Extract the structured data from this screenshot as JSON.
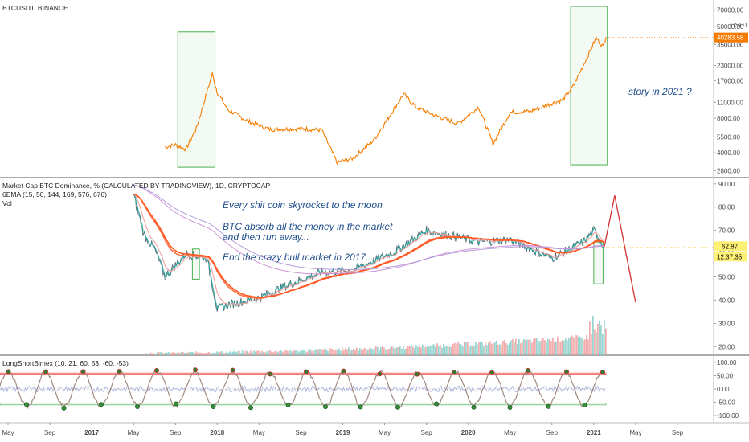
{
  "colors": {
    "price_line": "#f57c00",
    "price_tag_bg": "#f57c00",
    "dom_tag_bg": "#fff176",
    "box_stroke": "#4caf50",
    "box_fill": "#e8f5e9",
    "annotation": "#1f4e8c",
    "red_arrow": "#d32f2f",
    "ema": [
      "#26a69a",
      "#ef9a9a",
      "#ff7043",
      "#ff5722",
      "#ce93d8",
      "#b39ddb"
    ],
    "osc_upper_band": "#ef5350",
    "osc_lower_band": "#66bb6a",
    "osc_line": "#a1887f",
    "osc_noise": "#9fa8da",
    "vol_up": "#80cbc4",
    "vol_down": "#ef9a9a"
  },
  "panels": {
    "price": {
      "title": "BTCUSDT, BINANCE",
      "axis_unit": "USDT",
      "last_price": "40283.58",
      "annotation": "story in 2021 ?"
    },
    "dominance": {
      "title": "Market Cap BTC Dominance, % (CALCULATED BY TRADINGVIEW), 1D, CRYPTOCAP",
      "ema_label": "6EMA (15, 50, 144, 169, 576, 676)",
      "vol_label": "Vol",
      "last_value": "62.87",
      "countdown": "12:37:35",
      "annotations": [
        "Every shit coin skyrocket to the moon",
        "BTC absorb all the money in the market",
        "and then run away...",
        "End the crazy bull market in 2017..."
      ]
    },
    "oscillator": {
      "title": "LongShortBimex (10, 21, 60, 53, -60, -53)"
    }
  },
  "chart_data": [
    {
      "type": "line",
      "title": "BTCUSDT, BINANCE",
      "y_scale": "log",
      "y_ticks": [
        "70000.00",
        "50000.00",
        "35000.00",
        "23000.00",
        "17000.00",
        "11000.00",
        "8000.00",
        "5500.00",
        "4000.00",
        "2800.00"
      ],
      "x": [
        "2017-08",
        "2017-09",
        "2017-10",
        "2017-11",
        "2017-12-17",
        "2018-01",
        "2018-02",
        "2018-04",
        "2018-06",
        "2018-09",
        "2018-11",
        "2018-12-15",
        "2019-02",
        "2019-04",
        "2019-06-26",
        "2019-08",
        "2019-09-25",
        "2019-12",
        "2020-02",
        "2020-03-12",
        "2020-05",
        "2020-07",
        "2020-09",
        "2020-10",
        "2020-11",
        "2020-12",
        "2021-01-08",
        "2021-01-28",
        "2021-02-06"
      ],
      "values": [
        4500,
        4700,
        4300,
        6500,
        19500,
        13500,
        9500,
        7500,
        6400,
        6500,
        6300,
        3300,
        3600,
        5200,
        13000,
        10000,
        8500,
        7200,
        10000,
        4800,
        9000,
        9200,
        10800,
        11500,
        15000,
        23000,
        40000,
        33500,
        40283.58
      ]
    },
    {
      "type": "line",
      "title": "Market Cap BTC Dominance, % (CALCULATED BY TRADINGVIEW), 1D, CRYPTOCAP",
      "y_ticks": [
        "90.00",
        "80.00",
        "70.00",
        "60.00",
        "50.00",
        "40.00",
        "30.00",
        "20.00"
      ],
      "x": [
        "2017-05",
        "2017-06",
        "2017-07",
        "2017-08",
        "2017-09",
        "2017-10",
        "2017-12",
        "2018-01",
        "2018-02",
        "2018-05",
        "2018-08",
        "2018-11",
        "2019-02",
        "2019-06",
        "2019-09",
        "2020-02",
        "2020-05",
        "2020-09",
        "2020-12",
        "2021-01",
        "2021-02"
      ],
      "values": [
        85,
        68,
        62,
        50,
        55,
        60,
        58,
        36,
        38,
        41,
        47,
        52,
        53,
        61,
        70,
        65,
        66,
        58,
        65,
        70,
        62.87
      ],
      "forecast": {
        "x": [
          "2021-02",
          "2021-03",
          "2021-05"
        ],
        "values": [
          62.87,
          85,
          39
        ]
      }
    },
    {
      "type": "line",
      "title": "LongShortBimex (10, 21, 60, 53, -60, -53)",
      "y_ticks": [
        "100.00",
        "50.00",
        "0.00",
        "-50.00",
        "-100.00"
      ],
      "bands": [
        60,
        53,
        -53,
        -60
      ]
    }
  ],
  "x_axis_labels": [
    "May",
    "Sep",
    "2017",
    "May",
    "Sep",
    "2018",
    "May",
    "Sep",
    "2019",
    "May",
    "Sep",
    "2020",
    "May",
    "Sep",
    "2021",
    "May",
    "Sep"
  ]
}
